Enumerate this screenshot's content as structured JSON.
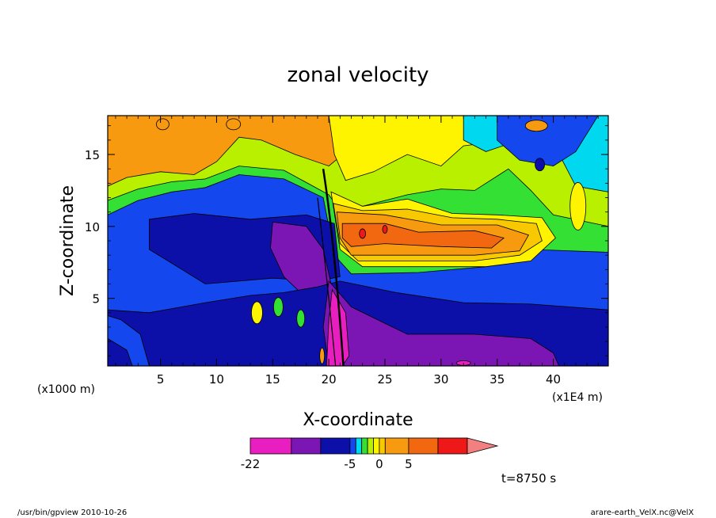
{
  "chart_data": {
    "type": "heatmap",
    "title": "zonal velocity",
    "xlabel": "X-coordinate",
    "ylabel": "Z-coordinate",
    "x_unit": "(x1E4 m)",
    "y_unit": "(x1000 m)",
    "xlim": [
      0.3,
      44.9
    ],
    "ylim": [
      0.3,
      17.7
    ],
    "x_ticks": [
      "5",
      "10",
      "15",
      "20",
      "25",
      "30",
      "35",
      "40"
    ],
    "y_ticks": [
      "5",
      "10",
      "15"
    ],
    "colorbar": {
      "levels": [
        -22,
        -15,
        -10,
        -5,
        -4,
        -3,
        -2,
        -1,
        0,
        1,
        5,
        10,
        15
      ],
      "labels": [
        "-22",
        "-5",
        "0",
        "5"
      ],
      "colors": [
        "#e81ec0",
        "#7b16b4",
        "#0c10a8",
        "#1448ee",
        "#00d8f0",
        "#34e034",
        "#b8f000",
        "#fff400",
        "#f8c800",
        "#f89a10",
        "#f26810",
        "#ee1818",
        "#f28080"
      ]
    },
    "time_label": "t=8750 s",
    "footer_left": "/usr/bin/gpview   2010-10-26",
    "footer_right": "arare-earth_VelX.nc@VelX"
  }
}
